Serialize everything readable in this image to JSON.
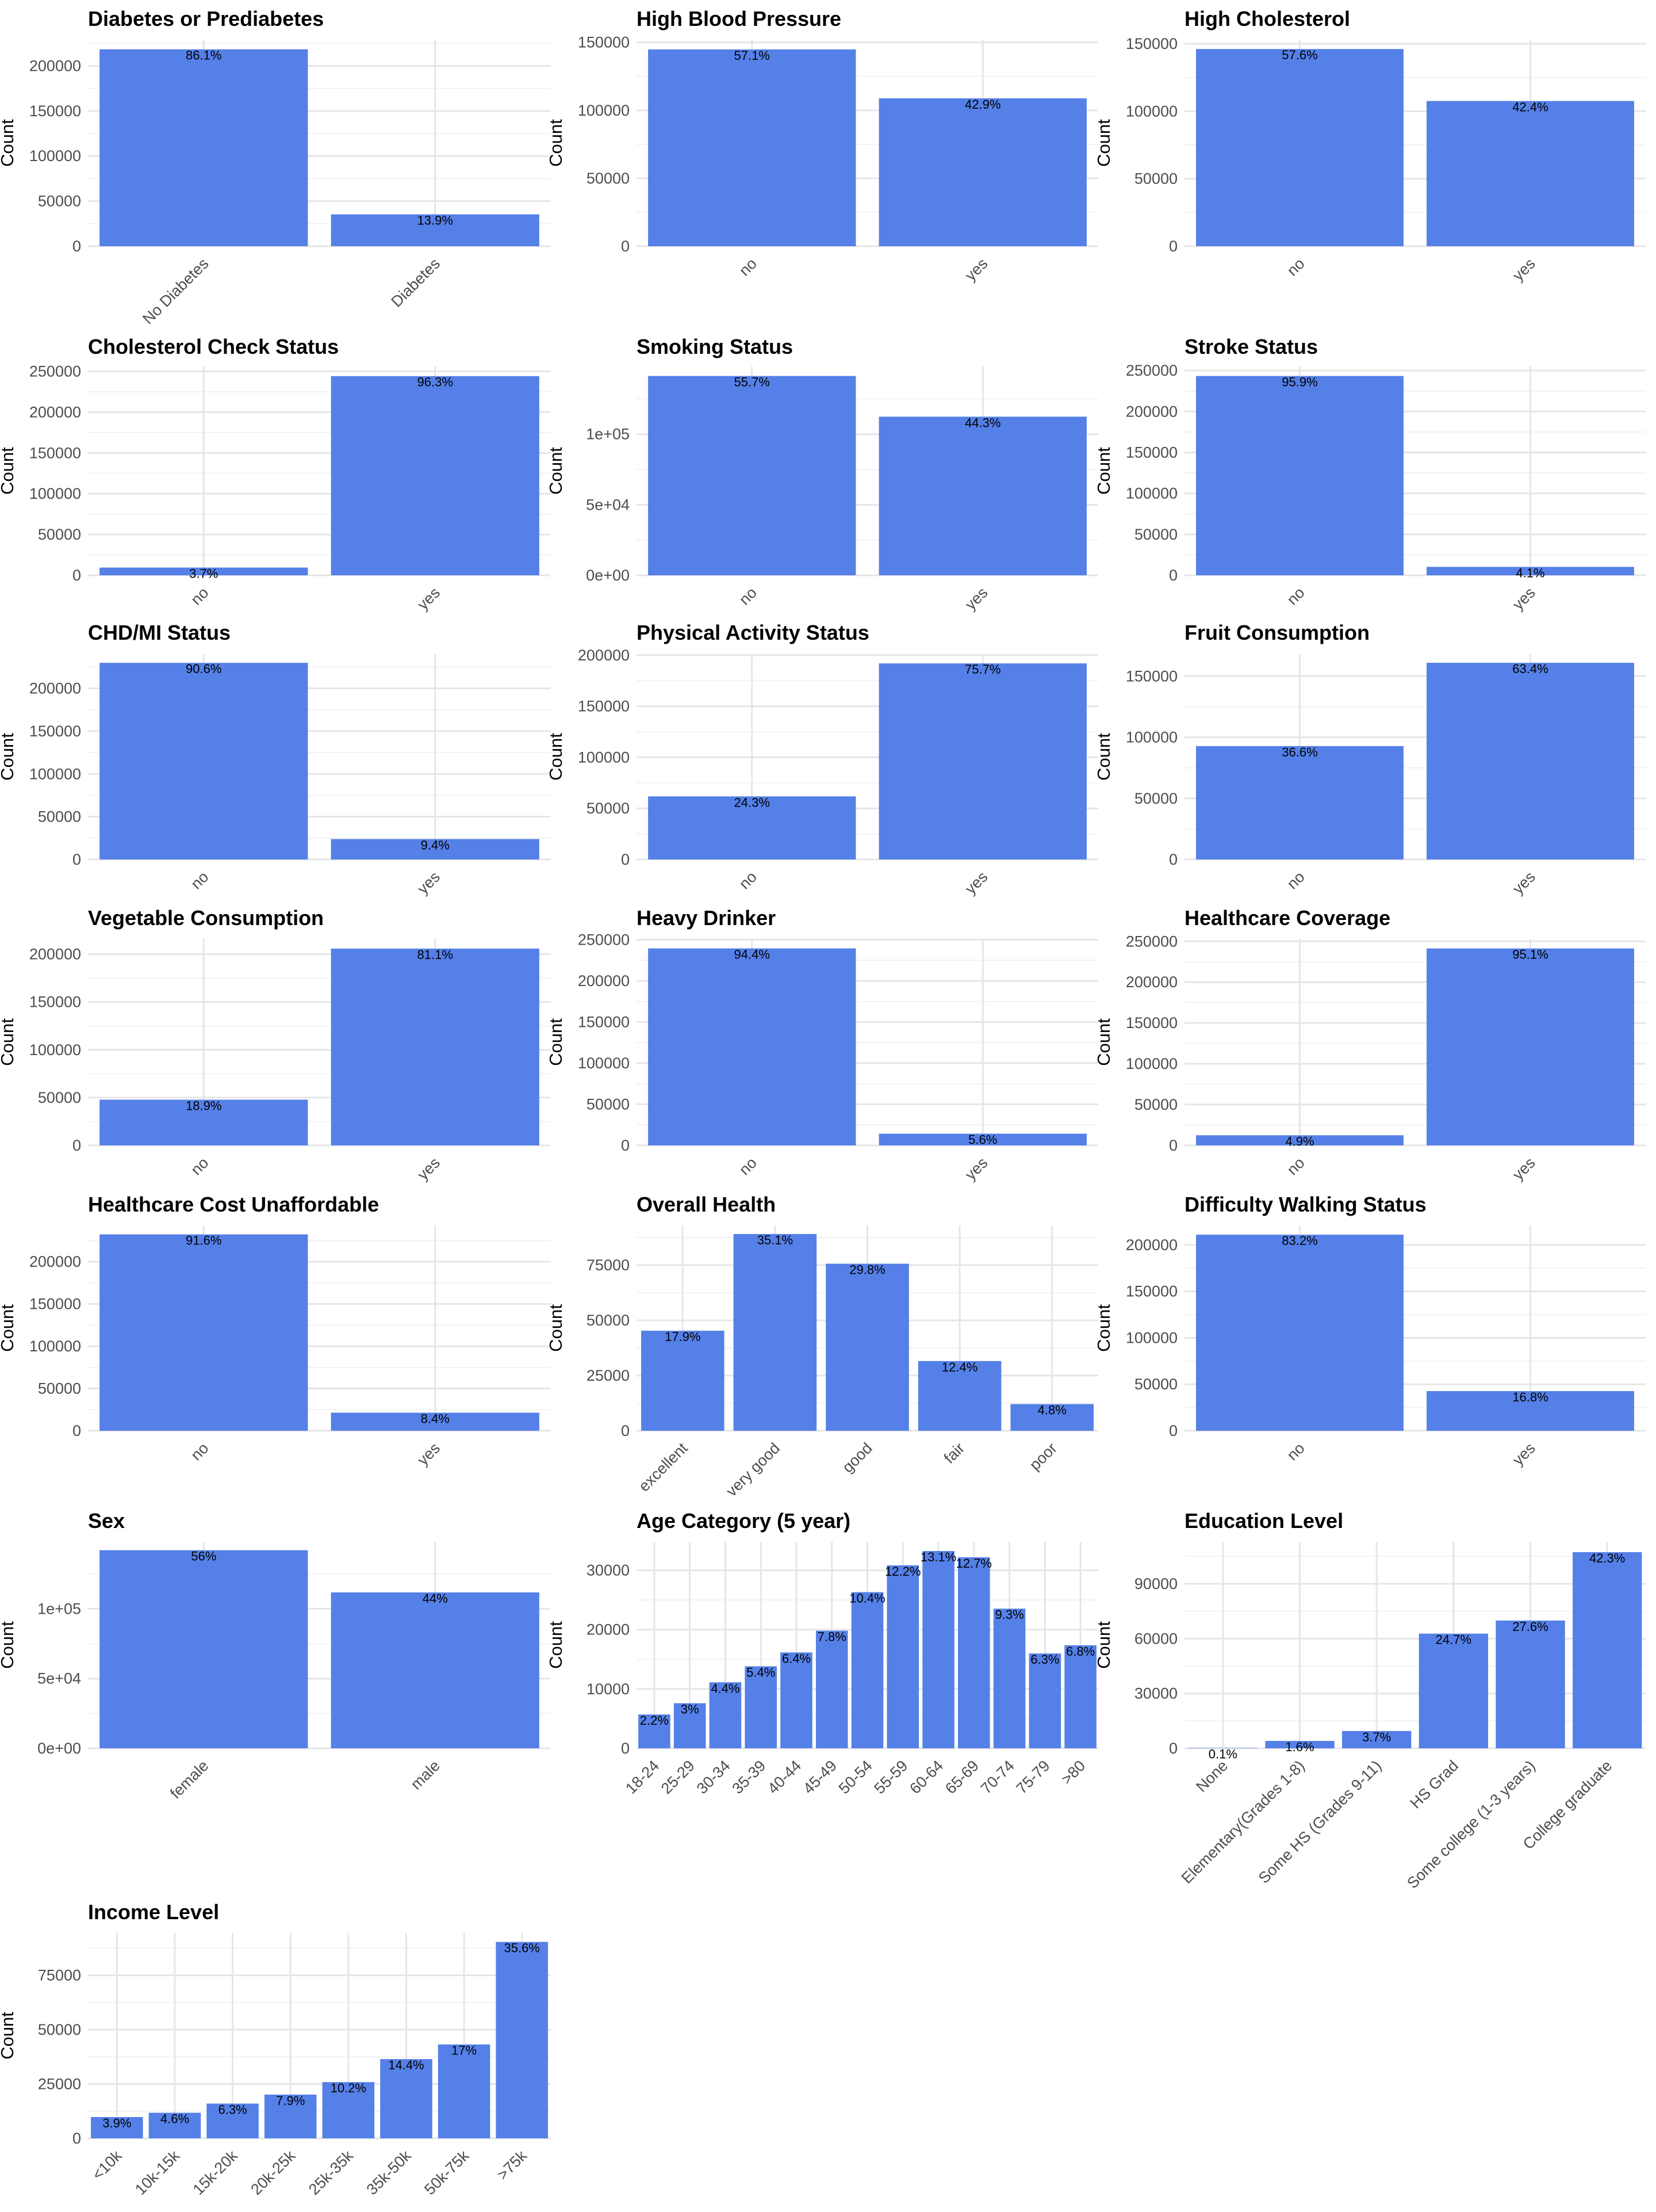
{
  "bar_color": "#5580E8",
  "grid_major_color": "#E6E6E6",
  "grid_minor_color": "#F2F2F2",
  "chart_data": [
    {
      "type": "bar",
      "title": "Diabetes or Prediabetes",
      "ylabel": "Count",
      "ylim": [
        0,
        229000
      ],
      "yticks": [
        0,
        50000,
        100000,
        150000,
        200000
      ],
      "ytick_labels": [
        "0",
        "50000",
        "100000",
        "150000",
        "200000"
      ],
      "categories": [
        "No Diabetes",
        "Diabetes"
      ],
      "values": [
        218334,
        35346
      ],
      "labels": [
        "86.1%",
        "13.9%"
      ],
      "grid": true,
      "legend": "none"
    },
    {
      "type": "bar",
      "title": "High Blood Pressure",
      "ylabel": "Count",
      "ylim": [
        0,
        152000
      ],
      "yticks": [
        0,
        50000,
        100000,
        150000
      ],
      "ytick_labels": [
        "0",
        "50000",
        "100000",
        "150000"
      ],
      "categories": [
        "no",
        "yes"
      ],
      "values": [
        144851,
        108829
      ],
      "labels": [
        "57.1%",
        "42.9%"
      ],
      "grid": true,
      "legend": "none"
    },
    {
      "type": "bar",
      "title": "High Cholesterol",
      "ylabel": "Count",
      "ylim": [
        0,
        153000
      ],
      "yticks": [
        0,
        50000,
        100000,
        150000
      ],
      "ytick_labels": [
        "0",
        "50000",
        "100000",
        "150000"
      ],
      "categories": [
        "no",
        "yes"
      ],
      "values": [
        146089,
        107591
      ],
      "labels": [
        "57.6%",
        "42.4%"
      ],
      "grid": true,
      "legend": "none"
    },
    {
      "type": "bar",
      "title": "Cholesterol Check Status",
      "ylabel": "Count",
      "ylim": [
        0,
        256000
      ],
      "yticks": [
        0,
        50000,
        100000,
        150000,
        200000,
        250000
      ],
      "ytick_labels": [
        "0",
        "50000",
        "100000",
        "150000",
        "200000",
        "250000"
      ],
      "categories": [
        "no",
        "yes"
      ],
      "values": [
        9470,
        244210
      ],
      "labels": [
        "3.7%",
        "96.3%"
      ],
      "grid": true,
      "legend": "none"
    },
    {
      "type": "bar",
      "title": "Smoking Status",
      "ylabel": "Count",
      "ylim": [
        0,
        148000
      ],
      "yticks": [
        0,
        50000,
        100000
      ],
      "ytick_labels": [
        "0e+00",
        "5e+04",
        "1e+05"
      ],
      "categories": [
        "no",
        "yes"
      ],
      "values": [
        141257,
        112423
      ],
      "labels": [
        "55.7%",
        "44.3%"
      ],
      "grid": true,
      "legend": "none"
    },
    {
      "type": "bar",
      "title": "Stroke Status",
      "ylabel": "Count",
      "ylim": [
        0,
        255000
      ],
      "yticks": [
        0,
        50000,
        100000,
        150000,
        200000,
        250000
      ],
      "ytick_labels": [
        "0",
        "50000",
        "100000",
        "150000",
        "200000",
        "250000"
      ],
      "categories": [
        "no",
        "yes"
      ],
      "values": [
        243388,
        10292
      ],
      "labels": [
        "95.9%",
        "4.1%"
      ],
      "grid": true,
      "legend": "none"
    },
    {
      "type": "bar",
      "title": "CHD/MI Status",
      "ylabel": "Count",
      "ylim": [
        0,
        240000
      ],
      "yticks": [
        0,
        50000,
        100000,
        150000,
        200000
      ],
      "ytick_labels": [
        "0",
        "50000",
        "100000",
        "150000",
        "200000"
      ],
      "categories": [
        "no",
        "yes"
      ],
      "values": [
        229787,
        23893
      ],
      "labels": [
        "90.6%",
        "9.4%"
      ],
      "grid": true,
      "legend": "none"
    },
    {
      "type": "bar",
      "title": "Physical Activity Status",
      "ylabel": "Count",
      "ylim": [
        0,
        201000
      ],
      "yticks": [
        0,
        50000,
        100000,
        150000,
        200000
      ],
      "ytick_labels": [
        "0",
        "50000",
        "100000",
        "150000",
        "200000"
      ],
      "categories": [
        "no",
        "yes"
      ],
      "values": [
        61760,
        191920
      ],
      "labels": [
        "24.3%",
        "75.7%"
      ],
      "grid": true,
      "legend": "none"
    },
    {
      "type": "bar",
      "title": "Fruit Consumption",
      "ylabel": "Count",
      "ylim": [
        0,
        168000
      ],
      "yticks": [
        0,
        50000,
        100000,
        150000
      ],
      "ytick_labels": [
        "0",
        "50000",
        "100000",
        "150000"
      ],
      "categories": [
        "no",
        "yes"
      ],
      "values": [
        92782,
        160898
      ],
      "labels": [
        "36.6%",
        "63.4%"
      ],
      "grid": true,
      "legend": "none"
    },
    {
      "type": "bar",
      "title": "Vegetable Consumption",
      "ylabel": "Count",
      "ylim": [
        0,
        216000
      ],
      "yticks": [
        0,
        50000,
        100000,
        150000,
        200000
      ],
      "ytick_labels": [
        "0",
        "50000",
        "100000",
        "150000",
        "200000"
      ],
      "categories": [
        "no",
        "yes"
      ],
      "values": [
        47839,
        205841
      ],
      "labels": [
        "18.9%",
        "81.1%"
      ],
      "grid": true,
      "legend": "none"
    },
    {
      "type": "bar",
      "title": "Heavy Drinker",
      "ylabel": "Count",
      "ylim": [
        0,
        251000
      ],
      "yticks": [
        0,
        50000,
        100000,
        150000,
        200000,
        250000
      ],
      "ytick_labels": [
        "0",
        "50000",
        "100000",
        "150000",
        "200000",
        "250000"
      ],
      "categories": [
        "no",
        "yes"
      ],
      "values": [
        239424,
        14256
      ],
      "labels": [
        "94.4%",
        "5.6%"
      ],
      "grid": true,
      "legend": "none"
    },
    {
      "type": "bar",
      "title": "Healthcare Coverage",
      "ylabel": "Count",
      "ylim": [
        0,
        253000
      ],
      "yticks": [
        0,
        50000,
        100000,
        150000,
        200000,
        250000
      ],
      "ytick_labels": [
        "0",
        "50000",
        "100000",
        "150000",
        "200000",
        "250000"
      ],
      "categories": [
        "no",
        "yes"
      ],
      "values": [
        12417,
        241263
      ],
      "labels": [
        "4.9%",
        "95.1%"
      ],
      "grid": true,
      "legend": "none"
    },
    {
      "type": "bar",
      "title": "Healthcare Cost Unaffordable",
      "ylabel": "Count",
      "ylim": [
        0,
        243000
      ],
      "yticks": [
        0,
        50000,
        100000,
        150000,
        200000
      ],
      "ytick_labels": [
        "0",
        "50000",
        "100000",
        "150000",
        "200000"
      ],
      "categories": [
        "no",
        "yes"
      ],
      "values": [
        232326,
        21354
      ],
      "labels": [
        "91.6%",
        "8.4%"
      ],
      "grid": true,
      "legend": "none"
    },
    {
      "type": "bar",
      "title": "Overall Health",
      "ylabel": "Count",
      "ylim": [
        0,
        93000
      ],
      "yticks": [
        0,
        25000,
        50000,
        75000
      ],
      "ytick_labels": [
        "0",
        "25000",
        "50000",
        "75000"
      ],
      "categories": [
        "excellent",
        "very good",
        "good",
        "fair",
        "poor"
      ],
      "values": [
        45299,
        89084,
        75646,
        31570,
        12081
      ],
      "labels": [
        "17.9%",
        "35.1%",
        "29.8%",
        "12.4%",
        "4.8%"
      ],
      "grid": true,
      "legend": "none"
    },
    {
      "type": "bar",
      "title": "Difficulty Walking Status",
      "ylabel": "Count",
      "ylim": [
        0,
        221000
      ],
      "yticks": [
        0,
        50000,
        100000,
        150000,
        200000
      ],
      "ytick_labels": [
        "0",
        "50000",
        "100000",
        "150000",
        "200000"
      ],
      "categories": [
        "no",
        "yes"
      ],
      "values": [
        211005,
        42675
      ],
      "labels": [
        "83.2%",
        "16.8%"
      ],
      "grid": true,
      "legend": "none"
    },
    {
      "type": "bar",
      "title": "Sex",
      "ylabel": "Count",
      "ylim": [
        0,
        148000
      ],
      "yticks": [
        0,
        50000,
        100000
      ],
      "ytick_labels": [
        "0e+00",
        "5e+04",
        "1e+05"
      ],
      "categories": [
        "female",
        "male"
      ],
      "values": [
        141974,
        111706
      ],
      "labels": [
        "56%",
        "44%"
      ],
      "grid": true,
      "legend": "none"
    },
    {
      "type": "bar",
      "title": "Age Category (5 year)",
      "ylabel": "Count",
      "ylim": [
        0,
        34800
      ],
      "yticks": [
        0,
        10000,
        20000,
        30000
      ],
      "ytick_labels": [
        "0",
        "10000",
        "20000",
        "30000"
      ],
      "categories": [
        "18-24",
        "25-29",
        "30-34",
        "35-39",
        "40-44",
        "45-49",
        "50-54",
        "55-59",
        "60-64",
        "65-69",
        "70-74",
        "75-79",
        ">80"
      ],
      "values": [
        5700,
        7598,
        11123,
        13823,
        16157,
        19819,
        26314,
        30832,
        33244,
        32194,
        23533,
        15980,
        17363
      ],
      "labels": [
        "2.2%",
        "3%",
        "4.4%",
        "5.4%",
        "6.4%",
        "7.8%",
        "10.4%",
        "12.2%",
        "13.1%",
        "12.7%",
        "9.3%",
        "6.3%",
        "6.8%"
      ],
      "grid": true,
      "legend": "none"
    },
    {
      "type": "bar",
      "title": "Education Level",
      "ylabel": "Count",
      "ylim": [
        0,
        113000
      ],
      "yticks": [
        0,
        30000,
        60000,
        90000
      ],
      "ytick_labels": [
        "0",
        "30000",
        "60000",
        "90000"
      ],
      "categories": [
        "None",
        "Elementary(Grades 1-8)",
        "Some HS (Grades 9-11)",
        "HS Grad",
        "Some college (1-3 years)",
        "College graduate"
      ],
      "values": [
        174,
        4043,
        9478,
        62750,
        69910,
        107325
      ],
      "labels": [
        "0.1%",
        "1.6%",
        "3.7%",
        "24.7%",
        "27.6%",
        "42.3%"
      ],
      "grid": true,
      "legend": "none"
    },
    {
      "type": "bar",
      "title": "Income Level",
      "ylabel": "Count",
      "ylim": [
        0,
        94500
      ],
      "yticks": [
        0,
        25000,
        50000,
        75000
      ],
      "ytick_labels": [
        "0",
        "25000",
        "50000",
        "75000"
      ],
      "categories": [
        "<10k",
        "10k-15k",
        "15k-20k",
        "20k-25k",
        "25k-35k",
        "35k-50k",
        "50k-75k",
        ">75k"
      ],
      "values": [
        9811,
        11783,
        15994,
        20135,
        25883,
        36470,
        43219,
        90385
      ],
      "labels": [
        "3.9%",
        "4.6%",
        "6.3%",
        "7.9%",
        "10.2%",
        "14.4%",
        "17%",
        "35.6%"
      ],
      "grid": true,
      "legend": "none"
    }
  ]
}
